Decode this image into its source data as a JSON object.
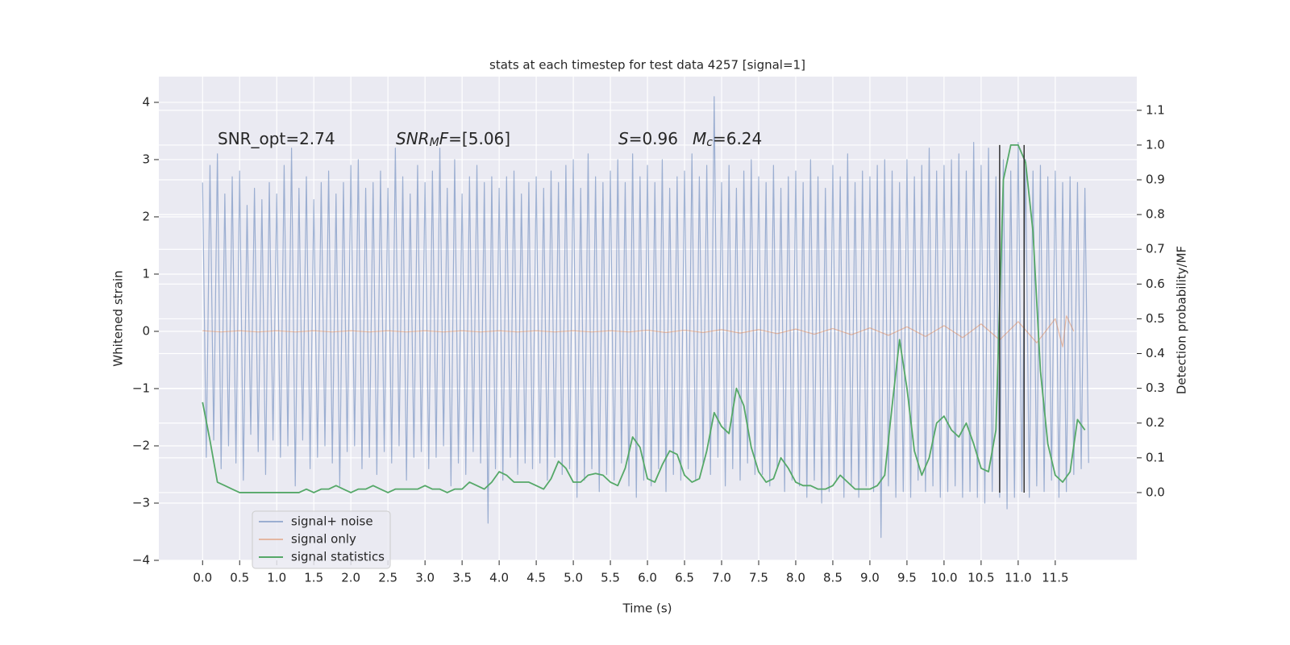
{
  "chart_data": {
    "type": "line",
    "title": "stats at each timestep for test data 4257 [signal=1]",
    "xlabel": "Time (s)",
    "ylabel": "Whitened strain",
    "y2label": "Detection probability/MF",
    "xlim": [
      -0.59,
      12.6
    ],
    "ylim": [
      -4.0,
      4.45
    ],
    "y2lim": [
      -0.195,
      1.197
    ],
    "grid": true,
    "legend": "lower left",
    "xticks": [
      {
        "value": 0,
        "label": "0.0"
      },
      {
        "value": 0.5,
        "label": "0.5"
      },
      {
        "value": 1,
        "label": "1.0"
      },
      {
        "value": 1.5,
        "label": "1.5"
      },
      {
        "value": 2,
        "label": "2.0"
      },
      {
        "value": 2.5,
        "label": "2.5"
      },
      {
        "value": 3,
        "label": "3.0"
      },
      {
        "value": 3.5,
        "label": "3.5"
      },
      {
        "value": 4,
        "label": "4.0"
      },
      {
        "value": 4.5,
        "label": "4.5"
      },
      {
        "value": 5,
        "label": "5.0"
      },
      {
        "value": 5.5,
        "label": "5.5"
      },
      {
        "value": 6,
        "label": "6.0"
      },
      {
        "value": 6.5,
        "label": "6.5"
      },
      {
        "value": 7,
        "label": "7.0"
      },
      {
        "value": 7.5,
        "label": "7.5"
      },
      {
        "value": 8,
        "label": "8.0"
      },
      {
        "value": 8.5,
        "label": "8.5"
      },
      {
        "value": 9,
        "label": "9.0"
      },
      {
        "value": 9.5,
        "label": "9.5"
      },
      {
        "value": 10,
        "label": "10.0"
      },
      {
        "value": 10.5,
        "label": "10.5"
      },
      {
        "value": 11,
        "label": "11.0"
      },
      {
        "value": 11.5,
        "label": "11.5"
      }
    ],
    "yticks": [
      {
        "value": -4,
        "label": "−4"
      },
      {
        "value": -3,
        "label": "−3"
      },
      {
        "value": -2,
        "label": "−2"
      },
      {
        "value": -1,
        "label": "−1"
      },
      0,
      1,
      2,
      3,
      4
    ],
    "y2ticks": [
      {
        "value": 0,
        "label": "0.0"
      },
      {
        "value": 0.1,
        "label": "0.1"
      },
      {
        "value": 0.2,
        "label": "0.2"
      },
      {
        "value": 0.3,
        "label": "0.3"
      },
      {
        "value": 0.4,
        "label": "0.4"
      },
      {
        "value": 0.5,
        "label": "0.5"
      },
      {
        "value": 0.6,
        "label": "0.6"
      },
      {
        "value": 0.7,
        "label": "0.7"
      },
      {
        "value": 0.8,
        "label": "0.8"
      },
      {
        "value": 0.9,
        "label": "0.9"
      },
      {
        "value": 1,
        "label": "1.0"
      },
      {
        "value": 1.1,
        "label": "1.1"
      }
    ],
    "annotations": [
      {
        "parts": [
          {
            "text": "SNR_opt=2.74",
            "italic": false,
            "sub": false
          }
        ]
      },
      {
        "parts": [
          {
            "text": "SNR",
            "italic": true,
            "sub": false
          },
          {
            "text": "M",
            "italic": true,
            "sub": true
          },
          {
            "text": "F",
            "italic": true,
            "sub": false
          },
          {
            "text": "=[5.06]",
            "italic": false,
            "sub": false
          }
        ]
      },
      {
        "parts": [
          {
            "text": "S",
            "italic": true,
            "sub": false
          },
          {
            "text": "=0.96",
            "italic": false,
            "sub": false
          }
        ]
      },
      {
        "parts": [
          {
            "text": "M",
            "italic": true,
            "sub": false
          },
          {
            "text": "c",
            "italic": true,
            "sub": true
          },
          {
            "text": "=6.24",
            "italic": false,
            "sub": false
          }
        ]
      }
    ],
    "vlines": {
      "x": [
        10.75,
        11.08
      ],
      "ymin": 0,
      "ymax": 1.0,
      "color": "#333333"
    },
    "series": [
      {
        "name": "signal+ noise",
        "color": "#4c72b0",
        "opacity": 0.5,
        "axis": "y",
        "x": [
          0,
          0.05,
          0.1,
          0.15,
          0.2,
          0.25,
          0.3,
          0.35,
          0.4,
          0.45,
          0.5,
          0.55,
          0.6,
          0.65,
          0.7,
          0.75,
          0.8,
          0.85,
          0.9,
          0.95,
          1,
          1.05,
          1.1,
          1.15,
          1.2,
          1.25,
          1.3,
          1.35,
          1.4,
          1.45,
          1.5,
          1.55,
          1.6,
          1.65,
          1.7,
          1.75,
          1.8,
          1.85,
          1.9,
          1.95,
          2,
          2.05,
          2.1,
          2.15,
          2.2,
          2.25,
          2.3,
          2.35,
          2.4,
          2.45,
          2.5,
          2.55,
          2.6,
          2.65,
          2.7,
          2.75,
          2.8,
          2.85,
          2.9,
          2.95,
          3,
          3.05,
          3.1,
          3.15,
          3.2,
          3.25,
          3.3,
          3.35,
          3.4,
          3.45,
          3.5,
          3.55,
          3.6,
          3.65,
          3.7,
          3.75,
          3.8,
          3.85,
          3.9,
          3.95,
          4,
          4.05,
          4.1,
          4.15,
          4.2,
          4.25,
          4.3,
          4.35,
          4.4,
          4.45,
          4.5,
          4.55,
          4.6,
          4.65,
          4.7,
          4.75,
          4.8,
          4.85,
          4.9,
          4.95,
          5,
          5.05,
          5.1,
          5.15,
          5.2,
          5.25,
          5.3,
          5.35,
          5.4,
          5.45,
          5.5,
          5.55,
          5.6,
          5.65,
          5.7,
          5.75,
          5.8,
          5.85,
          5.9,
          5.95,
          6,
          6.05,
          6.1,
          6.15,
          6.2,
          6.25,
          6.3,
          6.35,
          6.4,
          6.45,
          6.5,
          6.55,
          6.6,
          6.65,
          6.7,
          6.75,
          6.8,
          6.85,
          6.9,
          6.95,
          7,
          7.05,
          7.1,
          7.15,
          7.2,
          7.25,
          7.3,
          7.35,
          7.4,
          7.45,
          7.5,
          7.55,
          7.6,
          7.65,
          7.7,
          7.75,
          7.8,
          7.85,
          7.9,
          7.95,
          8,
          8.05,
          8.1,
          8.15,
          8.2,
          8.25,
          8.3,
          8.35,
          8.4,
          8.45,
          8.5,
          8.55,
          8.6,
          8.65,
          8.7,
          8.75,
          8.8,
          8.85,
          8.9,
          8.95,
          9,
          9.05,
          9.1,
          9.15,
          9.2,
          9.25,
          9.3,
          9.35,
          9.4,
          9.45,
          9.5,
          9.55,
          9.6,
          9.65,
          9.7,
          9.75,
          9.8,
          9.85,
          9.9,
          9.95,
          10,
          10.05,
          10.1,
          10.15,
          10.2,
          10.25,
          10.3,
          10.35,
          10.4,
          10.45,
          10.5,
          10.55,
          10.6,
          10.65,
          10.7,
          10.75,
          10.8,
          10.85,
          10.9,
          10.95,
          11,
          11.05,
          11.1,
          11.15,
          11.2,
          11.25,
          11.3,
          11.35,
          11.4,
          11.45,
          11.5,
          11.55,
          11.6,
          11.65,
          11.7,
          11.75,
          11.8,
          11.85,
          11.9,
          11.95
        ],
        "values": [
          2.6,
          -2.2,
          2.9,
          -1.9,
          3.1,
          -2.4,
          2.4,
          -2.0,
          2.7,
          -2.3,
          2.8,
          -2.6,
          2.2,
          -1.8,
          2.5,
          -2.1,
          2.3,
          -2.5,
          2.6,
          -1.9,
          2.4,
          -2.2,
          2.9,
          -2.0,
          3.2,
          -2.7,
          2.5,
          -1.9,
          2.7,
          -2.4,
          2.3,
          -2.2,
          2.6,
          -2.0,
          2.8,
          -2.3,
          2.4,
          -2.7,
          2.6,
          -2.1,
          2.9,
          -2.0,
          3.0,
          -2.4,
          2.5,
          -2.2,
          2.6,
          -2.5,
          2.8,
          -2.1,
          2.5,
          -2.3,
          3.2,
          -2.0,
          2.7,
          -2.6,
          2.4,
          -2.2,
          2.9,
          -2.1,
          2.6,
          -2.4,
          2.8,
          -2.2,
          3.2,
          -2.0,
          2.5,
          -2.7,
          3.0,
          -2.3,
          2.4,
          -2.5,
          2.7,
          -2.1,
          2.9,
          -2.3,
          2.6,
          -3.35,
          2.7,
          -2.4,
          2.5,
          -2.6,
          2.7,
          -2.2,
          2.8,
          -2.5,
          2.4,
          -2.3,
          2.6,
          -2.4,
          2.7,
          -2.3,
          2.5,
          -2.6,
          2.8,
          -2.2,
          2.6,
          -2.5,
          2.9,
          -2.4,
          3.0,
          -2.9,
          2.5,
          -2.6,
          3.1,
          -2.4,
          2.7,
          -2.8,
          2.6,
          -2.5,
          2.8,
          -2.6,
          3.0,
          -2.3,
          2.6,
          -2.7,
          3.1,
          -2.9,
          2.7,
          -2.6,
          2.9,
          -2.7,
          2.6,
          -2.4,
          3.0,
          -2.8,
          2.5,
          -2.5,
          2.7,
          -2.6,
          2.8,
          -2.4,
          3.1,
          -2.6,
          2.7,
          -2.3,
          2.9,
          -2.5,
          4.1,
          -2.2,
          2.6,
          -2.7,
          2.9,
          -2.4,
          2.5,
          -2.6,
          2.8,
          -2.3,
          3.0,
          -2.5,
          2.7,
          -2.5,
          2.6,
          -2.7,
          2.9,
          -2.4,
          2.5,
          -2.8,
          2.7,
          -2.6,
          2.8,
          -2.7,
          2.6,
          -2.9,
          3.0,
          -2.6,
          2.7,
          -3.0,
          2.5,
          -2.8,
          2.9,
          -2.6,
          2.7,
          -2.9,
          3.1,
          -2.7,
          2.6,
          -2.9,
          2.8,
          -2.7,
          2.7,
          -2.8,
          2.9,
          -3.6,
          3.0,
          -2.7,
          2.8,
          -2.9,
          2.6,
          -2.8,
          3.0,
          -2.9,
          2.7,
          -2.6,
          2.9,
          -2.8,
          3.2,
          -2.7,
          2.8,
          -2.9,
          2.9,
          -2.8,
          3.0,
          -2.7,
          3.1,
          -2.9,
          2.8,
          -2.8,
          3.3,
          -2.9,
          2.9,
          -3.0,
          3.2,
          -2.8,
          2.7,
          -2.9,
          3.0,
          -3.1,
          2.8,
          -2.9,
          3.3,
          -2.8,
          3.0,
          -2.9,
          2.8,
          -2.7,
          2.9,
          -2.8,
          2.7,
          -2.6,
          2.8,
          -2.9,
          2.6,
          -2.8,
          2.7,
          -2.5,
          2.6,
          -2.4,
          2.5,
          -2.3
        ]
      },
      {
        "name": "signal only",
        "color": "#dd8452",
        "opacity": 0.5,
        "axis": "y",
        "x": [
          0,
          0.25,
          0.5,
          0.75,
          1,
          1.25,
          1.5,
          1.75,
          2,
          2.25,
          2.5,
          2.75,
          3,
          3.25,
          3.5,
          3.75,
          4,
          4.25,
          4.5,
          4.75,
          5,
          5.25,
          5.5,
          5.75,
          6,
          6.25,
          6.5,
          6.75,
          7,
          7.25,
          7.5,
          7.75,
          8,
          8.25,
          8.5,
          8.75,
          9,
          9.25,
          9.5,
          9.75,
          10,
          10.25,
          10.5,
          10.75,
          11,
          11.25,
          11.5,
          11.6,
          11.65,
          11.75
        ],
        "values": [
          0.01,
          -0.01,
          0.01,
          -0.01,
          0.01,
          -0.01,
          0.01,
          -0.01,
          0.01,
          -0.01,
          0.01,
          -0.01,
          0.01,
          -0.01,
          0.01,
          -0.01,
          0.01,
          -0.01,
          0.01,
          -0.01,
          0.01,
          -0.01,
          0.01,
          -0.01,
          0.02,
          -0.02,
          0.02,
          -0.02,
          0.03,
          -0.03,
          0.03,
          -0.04,
          0.04,
          -0.05,
          0.05,
          -0.06,
          0.06,
          -0.07,
          0.08,
          -0.09,
          0.1,
          -0.11,
          0.13,
          -0.15,
          0.17,
          -0.2,
          0.22,
          -0.27,
          0.27,
          0
        ]
      },
      {
        "name": "signal statistics",
        "color": "#55a868",
        "opacity": 1,
        "axis": "y2",
        "x": [
          0,
          0.1,
          0.2,
          0.3,
          0.4,
          0.5,
          0.6,
          0.7,
          0.8,
          0.9,
          1,
          1.1,
          1.2,
          1.3,
          1.4,
          1.5,
          1.6,
          1.7,
          1.8,
          1.9,
          2,
          2.1,
          2.2,
          2.3,
          2.4,
          2.5,
          2.6,
          2.7,
          2.8,
          2.9,
          3,
          3.1,
          3.2,
          3.3,
          3.4,
          3.5,
          3.6,
          3.7,
          3.8,
          3.9,
          4,
          4.1,
          4.2,
          4.3,
          4.4,
          4.5,
          4.6,
          4.7,
          4.8,
          4.9,
          5,
          5.1,
          5.2,
          5.3,
          5.4,
          5.5,
          5.6,
          5.7,
          5.8,
          5.9,
          6,
          6.1,
          6.2,
          6.3,
          6.4,
          6.5,
          6.6,
          6.7,
          6.8,
          6.9,
          7,
          7.1,
          7.2,
          7.3,
          7.4,
          7.5,
          7.6,
          7.7,
          7.8,
          7.9,
          8,
          8.1,
          8.2,
          8.3,
          8.4,
          8.5,
          8.6,
          8.7,
          8.8,
          8.9,
          9,
          9.1,
          9.2,
          9.3,
          9.4,
          9.5,
          9.6,
          9.7,
          9.8,
          9.9,
          10,
          10.1,
          10.2,
          10.3,
          10.4,
          10.5,
          10.6,
          10.7,
          10.8,
          10.9,
          11,
          11.1,
          11.2,
          11.3,
          11.4,
          11.5,
          11.6,
          11.7,
          11.8,
          11.9
        ],
        "values": [
          0.26,
          0.15,
          0.03,
          0.02,
          0.01,
          0,
          0,
          0,
          0,
          0,
          0,
          0,
          0,
          0,
          0.01,
          0,
          0.01,
          0.01,
          0.02,
          0.01,
          0,
          0.01,
          0.01,
          0.02,
          0.01,
          0,
          0.01,
          0.01,
          0.01,
          0.01,
          0.02,
          0.01,
          0.01,
          0,
          0.01,
          0.01,
          0.03,
          0.02,
          0.01,
          0.03,
          0.06,
          0.05,
          0.03,
          0.03,
          0.03,
          0.02,
          0.01,
          0.04,
          0.09,
          0.07,
          0.03,
          0.03,
          0.05,
          0.055,
          0.05,
          0.03,
          0.02,
          0.07,
          0.16,
          0.13,
          0.04,
          0.03,
          0.08,
          0.12,
          0.11,
          0.05,
          0.03,
          0.04,
          0.12,
          0.23,
          0.19,
          0.17,
          0.3,
          0.25,
          0.13,
          0.06,
          0.03,
          0.04,
          0.1,
          0.07,
          0.03,
          0.02,
          0.02,
          0.01,
          0.01,
          0.02,
          0.05,
          0.03,
          0.01,
          0.01,
          0.01,
          0.02,
          0.05,
          0.25,
          0.44,
          0.3,
          0.12,
          0.05,
          0.1,
          0.2,
          0.22,
          0.18,
          0.16,
          0.2,
          0.14,
          0.07,
          0.06,
          0.18,
          0.9,
          1.0,
          1.0,
          0.95,
          0.75,
          0.35,
          0.14,
          0.05,
          0.03,
          0.06,
          0.21,
          0.18
        ]
      }
    ]
  }
}
